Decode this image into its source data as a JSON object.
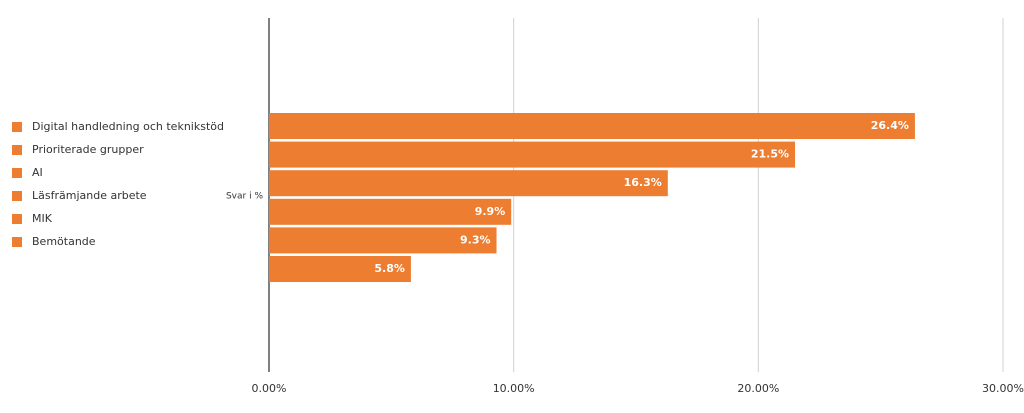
{
  "chart_data": {
    "type": "bar",
    "orientation": "horizontal",
    "ylabel": "Svar i %",
    "categories": [
      "Digital handledning och teknikstöd",
      "Prioriterade grupper",
      "AI",
      "Läsfrämjande arbete",
      "MIK",
      "Bemötande"
    ],
    "values": [
      26.4,
      21.5,
      16.3,
      9.9,
      9.3,
      5.8
    ],
    "value_labels": [
      "26.4%",
      "21.5%",
      "16.3%",
      "9.9%",
      "9.3%",
      "5.8%"
    ],
    "color": "#ed7d31",
    "xlim": [
      0,
      30
    ],
    "xticks": [
      {
        "value": 0,
        "label": "0.00%"
      },
      {
        "value": 10,
        "label": "10.00%"
      },
      {
        "value": 20,
        "label": "20.00%"
      },
      {
        "value": 30,
        "label": "30.00%"
      }
    ],
    "grid": true,
    "legend": "left"
  }
}
